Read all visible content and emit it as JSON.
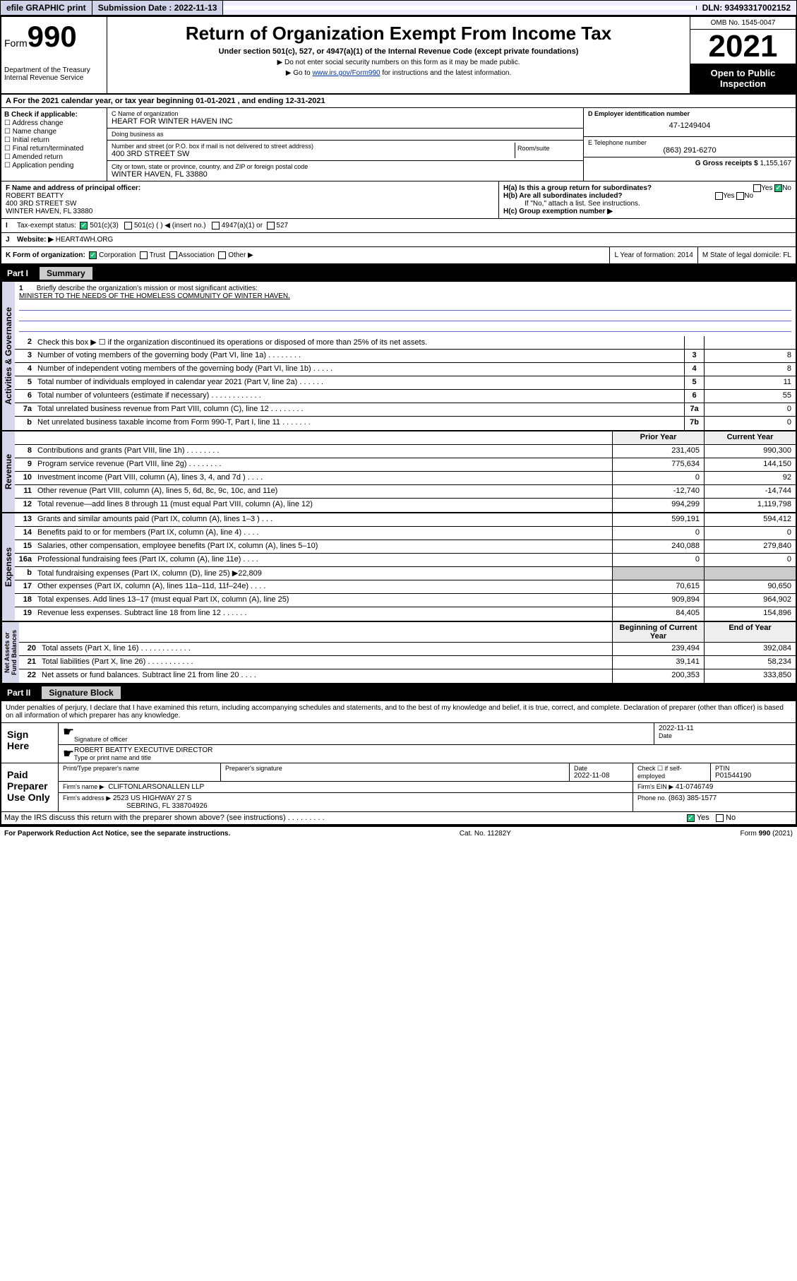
{
  "topbar": {
    "efile": "efile GRAPHIC print",
    "subdate_lbl": "Submission Date : 2022-11-13",
    "dln": "DLN: 93493317002152"
  },
  "header": {
    "form_word": "Form",
    "form_num": "990",
    "dept": "Department of the Treasury\nInternal Revenue Service",
    "title": "Return of Organization Exempt From Income Tax",
    "sub": "Under section 501(c), 527, or 4947(a)(1) of the Internal Revenue Code (except private foundations)",
    "note1": "Do not enter social security numbers on this form as it may be made public.",
    "note2_pre": "Go to ",
    "note2_link": "www.irs.gov/Form990",
    "note2_post": " for instructions and the latest information.",
    "omb": "OMB No. 1545-0047",
    "year": "2021",
    "inspect": "Open to Public Inspection"
  },
  "period": {
    "a": "A For the 2021 calendar year, or tax year beginning 01-01-2021   , and ending 12-31-2021"
  },
  "colB": {
    "hdr": "B Check if applicable:",
    "items": [
      "Address change",
      "Name change",
      "Initial return",
      "Final return/terminated",
      "Amended return",
      "Application pending"
    ]
  },
  "colC": {
    "name_lbl": "C Name of organization",
    "name": "HEART FOR WINTER HAVEN INC",
    "dba_lbl": "Doing business as",
    "dba": "",
    "addr_lbl": "Number and street (or P.O. box if mail is not delivered to street address)",
    "room_lbl": "Room/suite",
    "addr": "400 3RD STREET SW",
    "city_lbl": "City or town, state or province, country, and ZIP or foreign postal code",
    "city": "WINTER HAVEN, FL  33880"
  },
  "colDE": {
    "d_lbl": "D Employer identification number",
    "d_val": "47-1249404",
    "e_lbl": "E Telephone number",
    "e_val": "(863) 291-6270",
    "g_lbl": "G Gross receipts $ ",
    "g_val": "1,155,167"
  },
  "fh": {
    "f_lbl": "F Name and address of principal officer:",
    "f_name": "ROBERT BEATTY",
    "f_addr1": "400 3RD STREET SW",
    "f_addr2": "WINTER HAVEN, FL  33880",
    "ha": "H(a)  Is this a group return for subordinates?",
    "ha_yes": "Yes",
    "ha_no": "No",
    "hb": "H(b)  Are all subordinates included?",
    "hb_note": "If \"No,\" attach a list. See instructions.",
    "hc": "H(c)  Group exemption number ▶"
  },
  "ij": {
    "i_lbl": "Tax-exempt status:",
    "i_501c3": "501(c)(3)",
    "i_501c": "501(c) (  ) ◀ (insert no.)",
    "i_4947": "4947(a)(1) or",
    "i_527": "527",
    "j_lbl": "Website: ▶",
    "j_val": "HEART4WH.ORG"
  },
  "klm": {
    "k": "K Form of organization:",
    "k_corp": "Corporation",
    "k_trust": "Trust",
    "k_assoc": "Association",
    "k_other": "Other ▶",
    "l": "L Year of formation: 2014",
    "m": "M State of legal domicile: FL"
  },
  "part1": {
    "pt": "Part I",
    "ttl": "Summary"
  },
  "mission": {
    "n": "1",
    "lbl": "Briefly describe the organization's mission or most significant activities:",
    "txt": "MINISTER TO THE NEEDS OF THE HOMELESS COMMUNITY OF WINTER HAVEN."
  },
  "ag_lines": [
    {
      "n": "2",
      "d": "Check this box ▶ ☐  if the organization discontinued its operations or disposed of more than 25% of its net assets.",
      "cb": "",
      "cv": ""
    },
    {
      "n": "3",
      "d": "Number of voting members of the governing body (Part VI, line 1a)   .    .    .    .    .    .    .    .",
      "cb": "3",
      "cv": "8"
    },
    {
      "n": "4",
      "d": "Number of independent voting members of the governing body (Part VI, line 1b)  .    .    .    .    .",
      "cb": "4",
      "cv": "8"
    },
    {
      "n": "5",
      "d": "Total number of individuals employed in calendar year 2021 (Part V, line 2a)  .    .    .    .    .    .",
      "cb": "5",
      "cv": "11"
    },
    {
      "n": "6",
      "d": "Total number of volunteers (estimate if necessary)   .    .    .    .    .    .    .    .    .    .    .    .",
      "cb": "6",
      "cv": "55"
    },
    {
      "n": "7a",
      "d": "Total unrelated business revenue from Part VIII, column (C), line 12  .    .    .    .    .    .    .    .",
      "cb": "7a",
      "cv": "0"
    },
    {
      "n": "b",
      "d": "Net unrelated business taxable income from Form 990-T, Part I, line 11   .    .    .    .    .    .    .",
      "cb": "7b",
      "cv": "0"
    }
  ],
  "two_hdr": {
    "py": "Prior Year",
    "cy": "Current Year"
  },
  "rev_lines": [
    {
      "n": "8",
      "d": "Contributions and grants (Part VIII, line 1h)  .    .    .    .    .    .    .    .",
      "py": "231,405",
      "cy": "990,300"
    },
    {
      "n": "9",
      "d": "Program service revenue (Part VIII, line 2g)   .    .    .    .    .    .    .    .",
      "py": "775,634",
      "cy": "144,150"
    },
    {
      "n": "10",
      "d": "Investment income (Part VIII, column (A), lines 3, 4, and 7d )  .    .    .    .",
      "py": "0",
      "cy": "92"
    },
    {
      "n": "11",
      "d": "Other revenue (Part VIII, column (A), lines 5, 6d, 8c, 9c, 10c, and 11e)",
      "py": "-12,740",
      "cy": "-14,744"
    },
    {
      "n": "12",
      "d": "Total revenue—add lines 8 through 11 (must equal Part VIII, column (A), line 12)",
      "py": "994,299",
      "cy": "1,119,798"
    }
  ],
  "exp_lines": [
    {
      "n": "13",
      "d": "Grants and similar amounts paid (Part IX, column (A), lines 1–3 )  .    .    .",
      "py": "599,191",
      "cy": "594,412"
    },
    {
      "n": "14",
      "d": "Benefits paid to or for members (Part IX, column (A), line 4)  .    .    .    .",
      "py": "0",
      "cy": "0"
    },
    {
      "n": "15",
      "d": "Salaries, other compensation, employee benefits (Part IX, column (A), lines 5–10)",
      "py": "240,088",
      "cy": "279,840"
    },
    {
      "n": "16a",
      "d": "Professional fundraising fees (Part IX, column (A), line 11e)   .    .    .    .",
      "py": "0",
      "cy": "0"
    },
    {
      "n": "b",
      "d": "Total fundraising expenses (Part IX, column (D), line 25) ▶22,809",
      "py": "__grey__",
      "cy": "__grey__"
    },
    {
      "n": "17",
      "d": "Other expenses (Part IX, column (A), lines 11a–11d, 11f–24e)  .    .    .    .",
      "py": "70,615",
      "cy": "90,650"
    },
    {
      "n": "18",
      "d": "Total expenses. Add lines 13–17 (must equal Part IX, column (A), line 25)",
      "py": "909,894",
      "cy": "964,902"
    },
    {
      "n": "19",
      "d": "Revenue less expenses. Subtract line 18 from line 12   .    .    .    .    .    .",
      "py": "84,405",
      "cy": "154,896"
    }
  ],
  "na_hdr": {
    "b": "Beginning of Current Year",
    "e": "End of Year"
  },
  "na_lines": [
    {
      "n": "20",
      "d": "Total assets (Part X, line 16)  .    .    .    .    .    .    .    .    .    .    .    .",
      "py": "239,494",
      "cy": "392,084"
    },
    {
      "n": "21",
      "d": "Total liabilities (Part X, line 26)   .    .    .    .    .    .    .    .    .    .    .",
      "py": "39,141",
      "cy": "58,234"
    },
    {
      "n": "22",
      "d": "Net assets or fund balances. Subtract line 21 from line 20  .    .    .    .",
      "py": "200,353",
      "cy": "333,850"
    }
  ],
  "vtabs": {
    "ag": "Activities & Governance",
    "rev": "Revenue",
    "exp": "Expenses",
    "na": "Net Assets or\nFund Balances"
  },
  "part2": {
    "pt": "Part II",
    "ttl": "Signature Block"
  },
  "sig": {
    "intro": "Under penalties of perjury, I declare that I have examined this return, including accompanying schedules and statements, and to the best of my knowledge and belief, it is true, correct, and complete. Declaration of preparer (other than officer) is based on all information of which preparer has any knowledge.",
    "sign_here": "Sign Here",
    "sig_of_officer": "Signature of officer",
    "date_lbl": "Date",
    "date": "2022-11-11",
    "officer": "ROBERT BEATTY  EXECUTIVE DIRECTOR",
    "type_name": "Type or print name and title",
    "paid": "Paid Preparer Use Only",
    "prep_name_lbl": "Print/Type preparer's name",
    "prep_sig_lbl": "Preparer's signature",
    "prep_date_lbl": "Date",
    "prep_date": "2022-11-08",
    "check_if": "Check ☐ if self-employed",
    "ptin_lbl": "PTIN",
    "ptin": "P01544190",
    "firm_name_lbl": "Firm's name    ▶",
    "firm_name": "CLIFTONLARSONALLEN LLP",
    "firm_ein_lbl": "Firm's EIN ▶",
    "firm_ein": "41-0746749",
    "firm_addr_lbl": "Firm's address ▶",
    "firm_addr1": "2523 US HIGHWAY 27 S",
    "firm_addr2": "SEBRING, FL  338704926",
    "phone_lbl": "Phone no.",
    "phone": "(863) 385-1577",
    "may_irs": "May the IRS discuss this return with the preparer shown above? (see instructions)   .    .    .    .    .    .    .    .    .",
    "yes": "Yes",
    "no": "No"
  },
  "footer": {
    "l": "For Paperwork Reduction Act Notice, see the separate instructions.",
    "c": "Cat. No. 11282Y",
    "r": "Form 990 (2021)"
  }
}
